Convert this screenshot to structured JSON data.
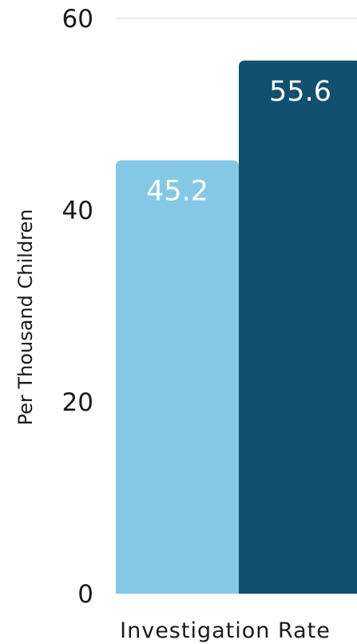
{
  "chart_data": {
    "type": "bar",
    "categories": [
      "Investigation Rate"
    ],
    "series": [
      {
        "values": [
          45.2
        ],
        "color": "#84c8e6"
      },
      {
        "values": [
          55.6
        ],
        "color": "#11506e"
      }
    ],
    "ylabel": "Per Thousand Children",
    "ylim": [
      0,
      60
    ],
    "yticks": [
      "0",
      "20",
      "40",
      "60"
    ],
    "data_labels": [
      "45.2",
      "55.6"
    ],
    "grid": true
  }
}
